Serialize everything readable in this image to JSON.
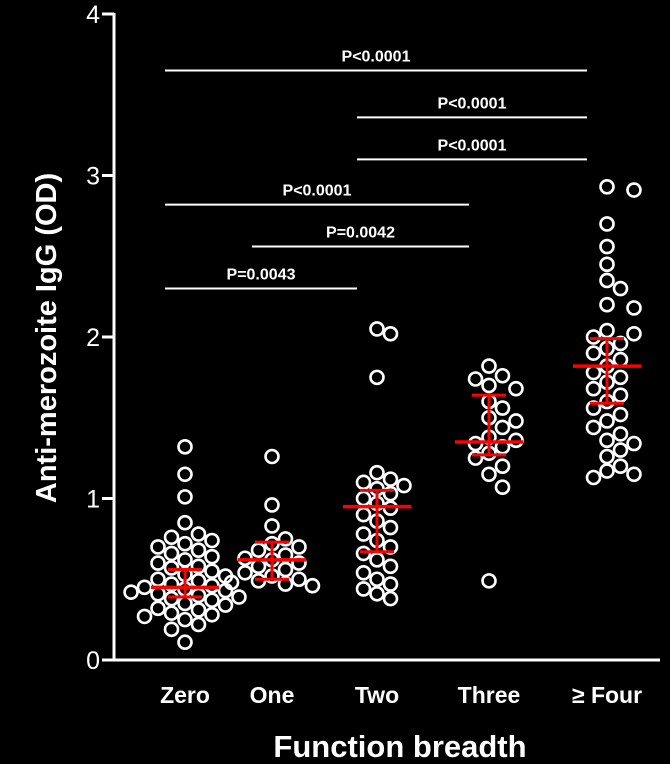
{
  "chart_data": {
    "type": "scatter",
    "title": "",
    "xlabel": "Function breadth",
    "ylabel": "Anti-merozoite IgG (OD)",
    "ylim": [
      0,
      4
    ],
    "yticks": [
      "0",
      "1",
      "2",
      "3",
      "4"
    ],
    "categories": [
      "Zero",
      "One",
      "Two",
      "Three",
      "≥ Four"
    ],
    "colors": {
      "background": "#000000",
      "axis": "#ffffff",
      "points": "#ffffff",
      "summary": "#ff0000"
    },
    "groups": [
      {
        "name": "Zero",
        "median": 0.45,
        "q1": 0.39,
        "q3": 0.56,
        "values": [
          1.32,
          1.15,
          1.01,
          0.85,
          0.78,
          0.76,
          0.74,
          0.72,
          0.7,
          0.68,
          0.66,
          0.64,
          0.62,
          0.6,
          0.58,
          0.57,
          0.55,
          0.53,
          0.52,
          0.5,
          0.49,
          0.47,
          0.46,
          0.45,
          0.44,
          0.43,
          0.42,
          0.41,
          0.4,
          0.39,
          0.38,
          0.37,
          0.35,
          0.34,
          0.32,
          0.31,
          0.29,
          0.28,
          0.27,
          0.25,
          0.22,
          0.19,
          0.11
        ]
      },
      {
        "name": "One",
        "median": 0.62,
        "q1": 0.5,
        "q3": 0.73,
        "values": [
          1.26,
          0.96,
          0.83,
          0.75,
          0.72,
          0.7,
          0.68,
          0.65,
          0.63,
          0.62,
          0.6,
          0.58,
          0.56,
          0.54,
          0.52,
          0.5,
          0.49,
          0.48,
          0.47,
          0.46
        ]
      },
      {
        "name": "Two",
        "median": 0.95,
        "q1": 0.67,
        "q3": 1.05,
        "values": [
          2.05,
          2.02,
          1.75,
          1.16,
          1.12,
          1.1,
          1.08,
          1.06,
          1.03,
          1.0,
          0.97,
          0.94,
          0.9,
          0.86,
          0.82,
          0.78,
          0.74,
          0.7,
          0.66,
          0.62,
          0.58,
          0.54,
          0.5,
          0.47,
          0.44,
          0.41,
          0.38
        ]
      },
      {
        "name": "Three",
        "median": 1.35,
        "q1": 1.27,
        "q3": 1.64,
        "values": [
          1.82,
          1.76,
          1.74,
          1.7,
          1.68,
          1.6,
          1.56,
          1.5,
          1.48,
          1.44,
          1.38,
          1.36,
          1.34,
          1.32,
          1.28,
          1.25,
          1.2,
          1.15,
          1.07,
          0.49
        ]
      },
      {
        "name": "≥ Four",
        "median": 1.82,
        "q1": 1.59,
        "q3": 1.99,
        "values": [
          2.93,
          2.91,
          2.7,
          2.56,
          2.45,
          2.35,
          2.3,
          2.2,
          2.18,
          2.04,
          2.02,
          2.0,
          1.96,
          1.93,
          1.9,
          1.86,
          1.82,
          1.78,
          1.75,
          1.72,
          1.68,
          1.64,
          1.6,
          1.56,
          1.52,
          1.48,
          1.44,
          1.4,
          1.36,
          1.34,
          1.3,
          1.26,
          1.2,
          1.17,
          1.15,
          1.13
        ]
      }
    ],
    "comparisons": [
      {
        "from": "Zero",
        "to": "Two",
        "y": 2.3,
        "label": "P=0.0043"
      },
      {
        "from": "One",
        "to": "Three",
        "y": 2.56,
        "label": "P=0.0042"
      },
      {
        "from": "Zero",
        "to": "Three",
        "y": 2.82,
        "label": "P<0.0001"
      },
      {
        "from": "Two",
        "to": "≥ Four",
        "y": 3.1,
        "label": "P<0.0001"
      },
      {
        "from": "Two",
        "to": "≥ Four",
        "y": 3.36,
        "label": "P<0.0001"
      },
      {
        "from": "Zero",
        "to": "≥ Four",
        "y": 3.65,
        "label": "P<0.0001"
      }
    ]
  }
}
